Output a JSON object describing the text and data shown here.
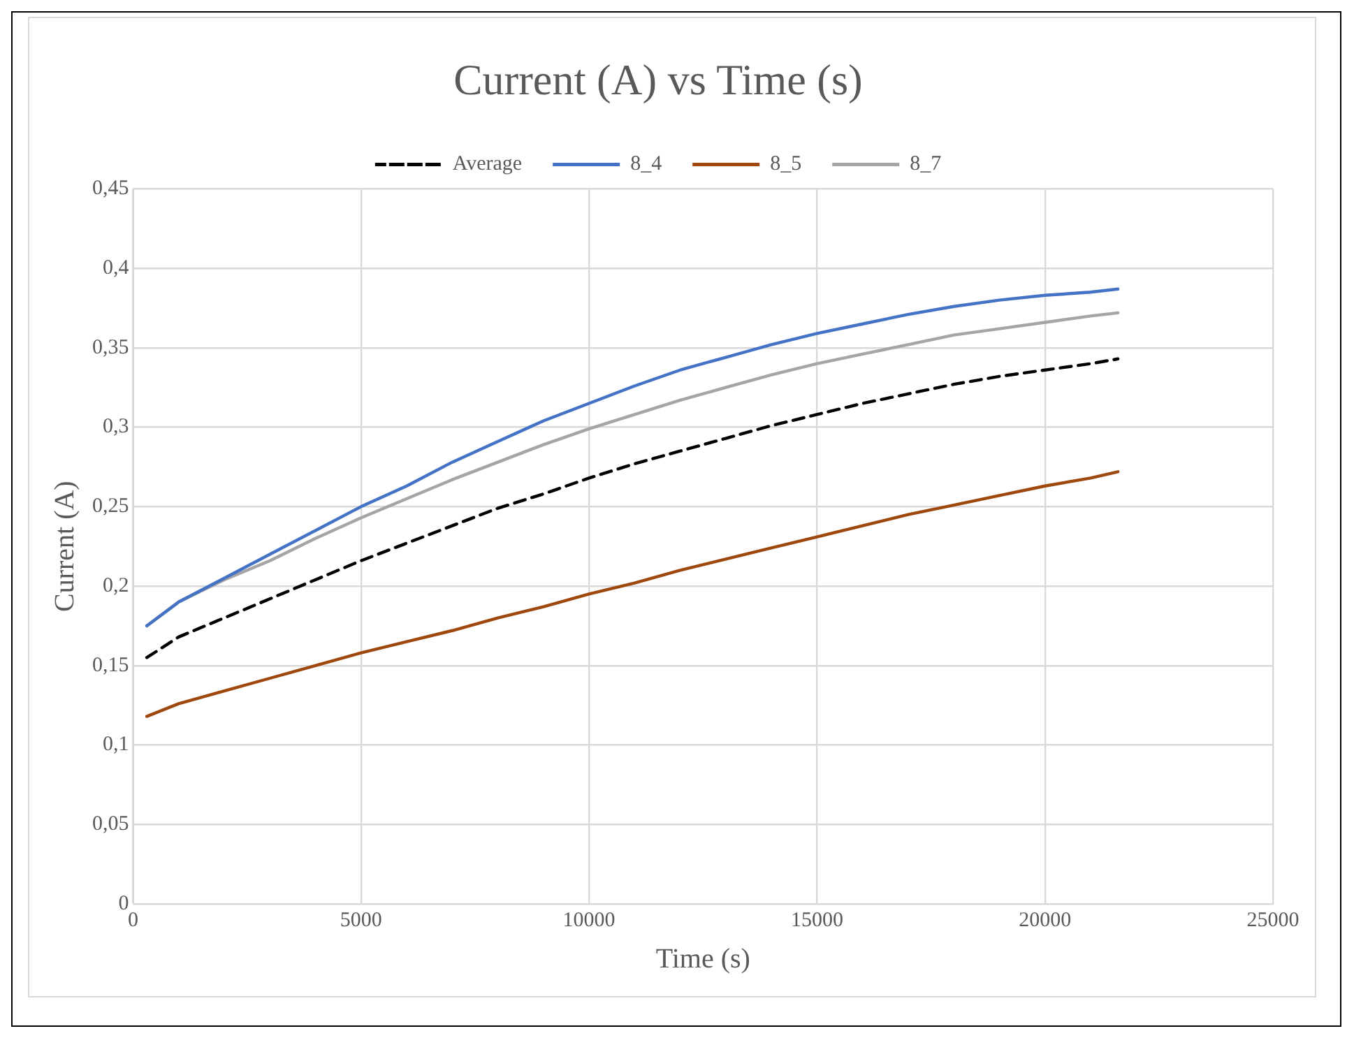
{
  "chart_data": {
    "type": "line",
    "title": "Current (A) vs Time (s)",
    "xlabel": "Time (s)",
    "ylabel": "Current (A)",
    "x": [
      300,
      1000,
      2000,
      3000,
      4000,
      5000,
      6000,
      7000,
      8000,
      9000,
      10000,
      11000,
      12000,
      13000,
      14000,
      15000,
      16000,
      17000,
      18000,
      19000,
      20000,
      21000,
      21600
    ],
    "series": [
      {
        "name": "Average",
        "color": "#000000",
        "line_style": "dashed",
        "values": [
          0.155,
          0.168,
          0.18,
          0.192,
          0.204,
          0.216,
          0.227,
          0.238,
          0.249,
          0.258,
          0.268,
          0.277,
          0.285,
          0.293,
          0.301,
          0.308,
          0.315,
          0.321,
          0.327,
          0.332,
          0.336,
          0.34,
          0.343
        ]
      },
      {
        "name": "8_4",
        "color": "#4472c4",
        "line_style": "solid",
        "values": [
          0.175,
          0.19,
          0.205,
          0.22,
          0.235,
          0.25,
          0.263,
          0.278,
          0.291,
          0.304,
          0.315,
          0.326,
          0.336,
          0.344,
          0.352,
          0.359,
          0.365,
          0.371,
          0.376,
          0.38,
          0.383,
          0.385,
          0.387
        ]
      },
      {
        "name": "8_5",
        "color": "#9e480e",
        "line_style": "solid",
        "values": [
          0.118,
          0.126,
          0.134,
          0.142,
          0.15,
          0.158,
          0.165,
          0.172,
          0.18,
          0.187,
          0.195,
          0.202,
          0.21,
          0.217,
          0.224,
          0.231,
          0.238,
          0.245,
          0.251,
          0.257,
          0.263,
          0.268,
          0.272
        ]
      },
      {
        "name": "8_7",
        "color": "#a5a5a5",
        "line_style": "solid",
        "values": [
          0.175,
          0.19,
          0.204,
          0.216,
          0.23,
          0.243,
          0.255,
          0.267,
          0.278,
          0.289,
          0.299,
          0.308,
          0.317,
          0.325,
          0.333,
          0.34,
          0.346,
          0.352,
          0.358,
          0.362,
          0.366,
          0.37,
          0.372
        ]
      }
    ],
    "xlim": [
      0,
      25000
    ],
    "xticks": [
      0,
      5000,
      10000,
      15000,
      20000,
      25000
    ],
    "ylim": [
      0,
      0.45
    ],
    "yticks": [
      0,
      {
        "value": 0.05,
        "label": "0,05"
      },
      {
        "value": 0.1,
        "label": "0,1"
      },
      {
        "value": 0.15,
        "label": "0,15"
      },
      {
        "value": 0.2,
        "label": "0,2"
      },
      {
        "value": 0.25,
        "label": "0,25"
      },
      {
        "value": 0.3,
        "label": "0,3"
      },
      {
        "value": 0.35,
        "label": "0,35"
      },
      {
        "value": 0.4,
        "label": "0,4"
      },
      {
        "value": 0.45,
        "label": "0,45"
      }
    ],
    "grid": true,
    "legend": "top",
    "marker": "none"
  }
}
